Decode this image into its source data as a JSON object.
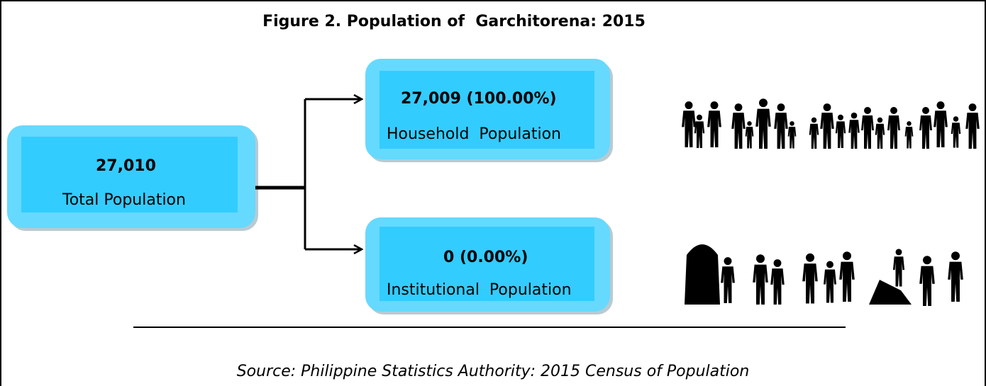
{
  "title": "Figure 2. Population of  Garchitorena: 2015",
  "nodes": [
    {
      "value": "27,010",
      "label": "Total Population"
    },
    {
      "value": "27,009 (100.00%)",
      "label": "Household  Population"
    },
    {
      "value": "0 (0.00%)",
      "label": "Institutional  Population"
    }
  ],
  "source": "Source: Philippine Statistics Authority: 2015 Census of Population"
}
